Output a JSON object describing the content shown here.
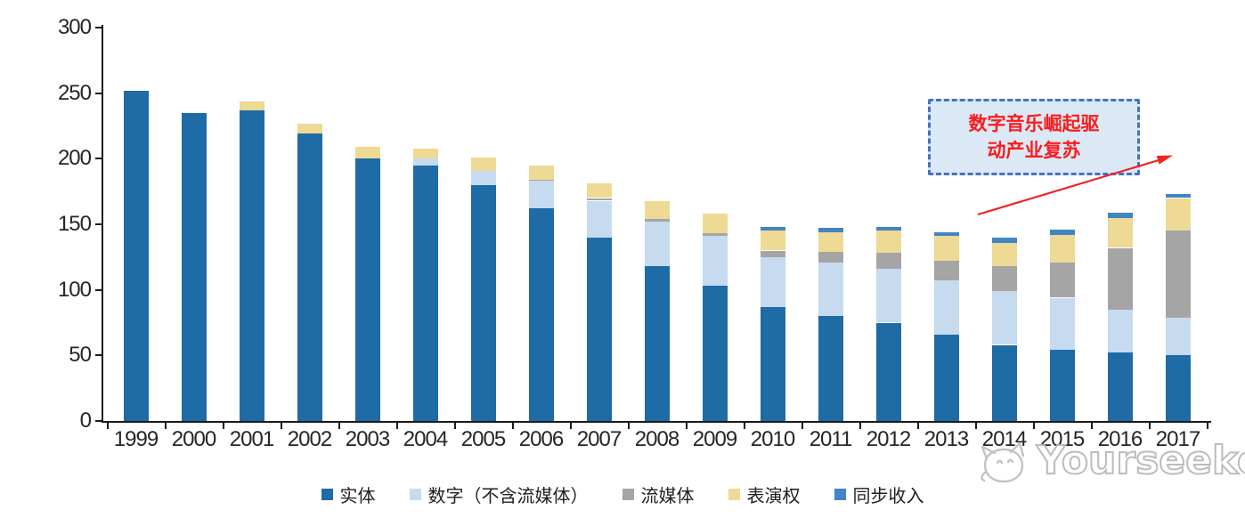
{
  "chart_data": {
    "type": "bar",
    "stacked": true,
    "title": "",
    "categories": [
      "1999",
      "2000",
      "2001",
      "2002",
      "2003",
      "2004",
      "2005",
      "2006",
      "2007",
      "2008",
      "2009",
      "2010",
      "2011",
      "2012",
      "2013",
      "2014",
      "2015",
      "2016",
      "2017"
    ],
    "series": [
      {
        "name": "实体",
        "color": "#1f6ba5",
        "values": [
          252,
          235,
          237,
          219,
          200,
          195,
          180,
          162,
          140,
          118,
          103,
          87,
          80,
          75,
          66,
          58,
          54,
          52,
          50
        ]
      },
      {
        "name": "数字（不含流媒体）",
        "color": "#c6daf0",
        "values": [
          0,
          0,
          0,
          0,
          0,
          5,
          11,
          21,
          28,
          34,
          38,
          38,
          41,
          41,
          41,
          41,
          40,
          33,
          29
        ]
      },
      {
        "name": "流媒体",
        "color": "#a5a5a5",
        "values": [
          0,
          0,
          0,
          0,
          0,
          0,
          0,
          1,
          2,
          2,
          2,
          5,
          8,
          12,
          15,
          19,
          27,
          47,
          66
        ]
      },
      {
        "name": "表演权",
        "color": "#eed995",
        "values": [
          0,
          0,
          7,
          8,
          9,
          8,
          10,
          11,
          11,
          14,
          15,
          15,
          15,
          17,
          19,
          18,
          21,
          23,
          25
        ]
      },
      {
        "name": "同步收入",
        "color": "#4284c4",
        "values": [
          0,
          0,
          0,
          0,
          0,
          0,
          0,
          0,
          0,
          0,
          0,
          3,
          3,
          3,
          3,
          4,
          4,
          4,
          3
        ]
      }
    ],
    "xlabel": "",
    "ylabel": "",
    "ylim": [
      0,
      300
    ],
    "yticks": [
      0,
      50,
      100,
      150,
      200,
      250,
      300
    ],
    "grid": false,
    "legend_position": "bottom"
  },
  "annotation": {
    "line1": "数字音乐崛起驱",
    "line2": "动产业复苏",
    "fill_color": "#dbe8f6",
    "border_color": "#4472c4",
    "text_color": "#fb1c1c",
    "arrow_color": "#f02424"
  },
  "watermark": {
    "text": "Yourseeker"
  },
  "colors": {
    "axis": "#1a1a1a",
    "tick_label": "#262626",
    "background": "#ffffff"
  }
}
